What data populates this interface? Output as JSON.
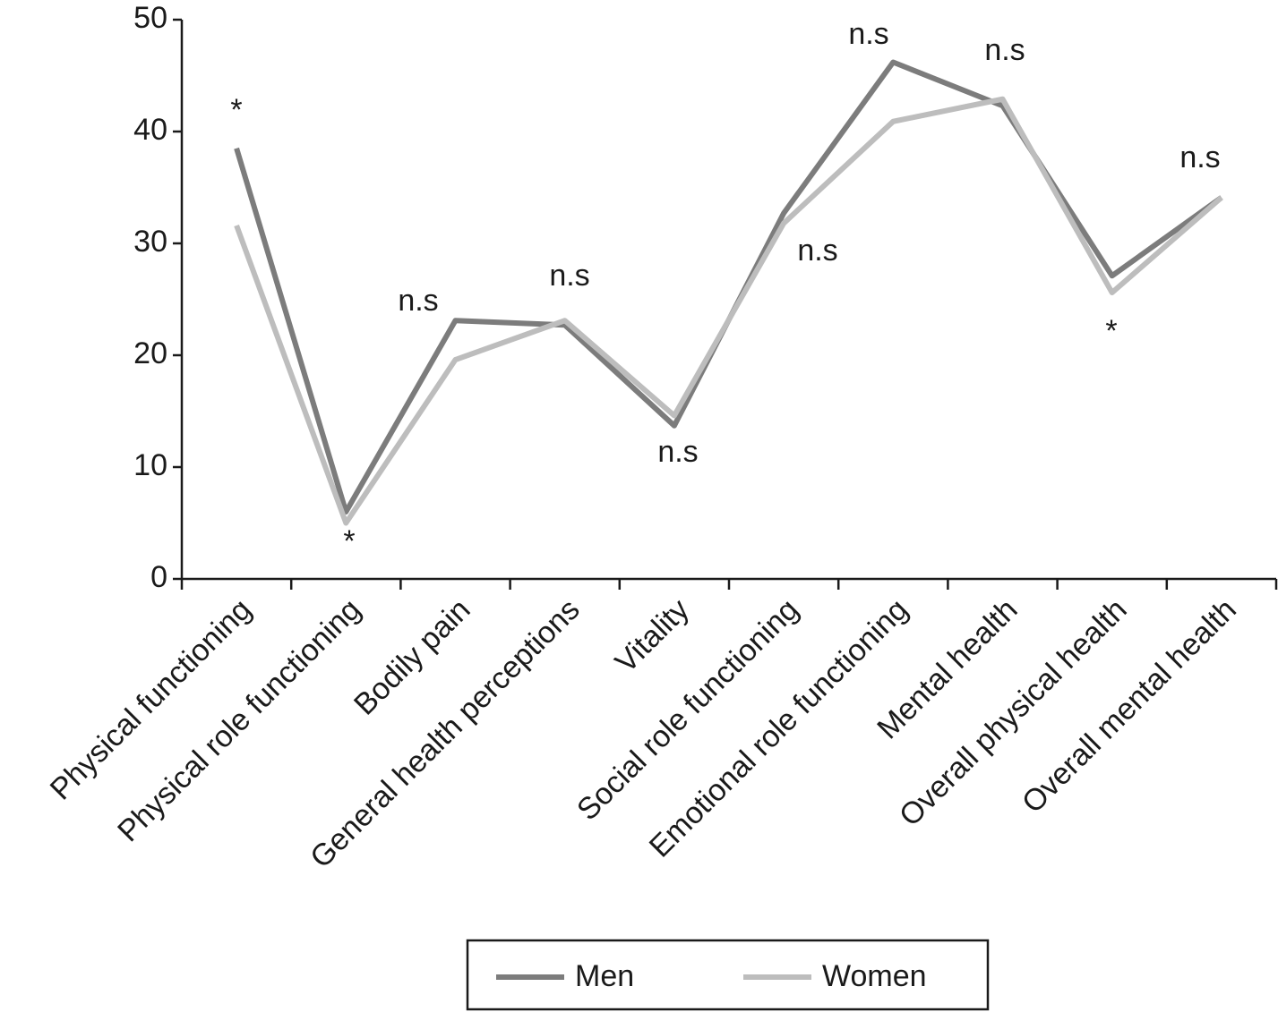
{
  "chart_data": {
    "type": "line",
    "categories": [
      "Physical functioning",
      "Physical role functioning",
      "Bodily pain",
      "General health perceptions",
      "Vitality",
      "Social role functioning",
      "Emotional role functioning",
      "Mental health",
      "Overall physical health",
      "Overall mental health"
    ],
    "series": [
      {
        "name": "Men",
        "color": "#7c7c7c",
        "values": [
          38.5,
          6,
          23.1,
          22.7,
          13.7,
          32.7,
          46.2,
          42.3,
          27.1,
          34.1
        ]
      },
      {
        "name": "Women",
        "color": "#bdbdbd",
        "values": [
          31.6,
          5,
          19.6,
          23.1,
          14.6,
          31.8,
          40.9,
          42.9,
          25.6,
          34.1
        ]
      }
    ],
    "annotations": [
      "*",
      "*",
      "n.s",
      "n.s",
      "n.s",
      "n.s",
      "n.s",
      "n.s",
      "*",
      "n.s"
    ],
    "ylim": [
      0,
      50
    ],
    "yticks": [
      0,
      10,
      20,
      30,
      40,
      50
    ],
    "legend": "bottom"
  }
}
